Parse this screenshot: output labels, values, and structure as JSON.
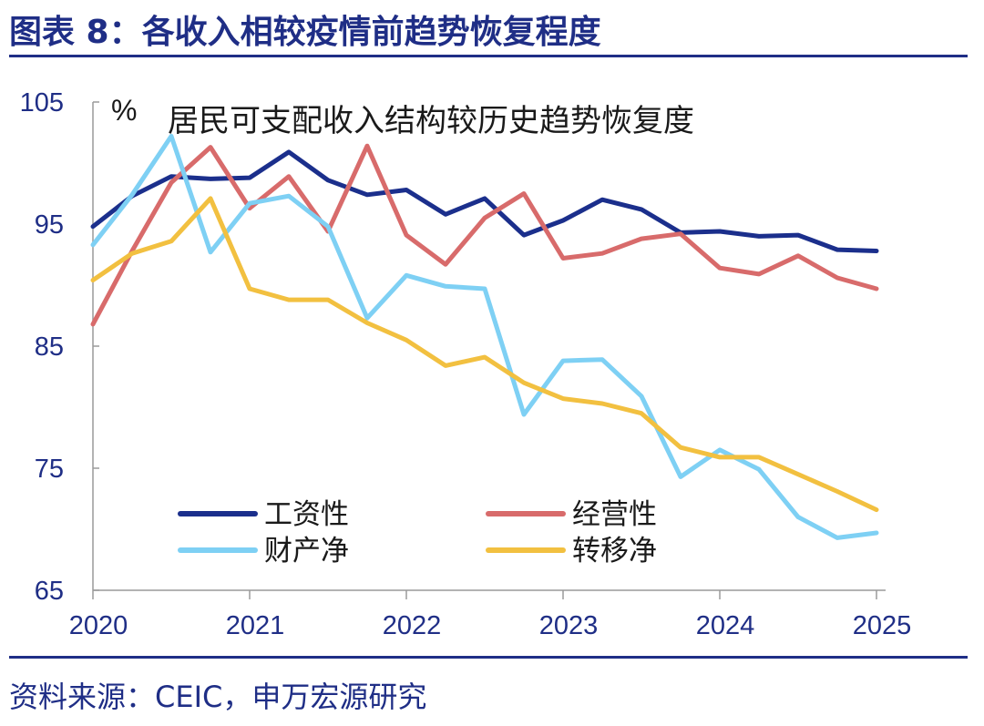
{
  "figure": {
    "title": "图表 8：各收入相较疫情前趋势恢复程度",
    "source": "资料来源：CEIC，申万宏源研究"
  },
  "chart_data": {
    "type": "line",
    "title": "居民可支配收入结构较历史趋势恢复度",
    "ylabel": "%",
    "xlabel": "",
    "ylim": [
      65,
      105
    ],
    "yticks": [
      65,
      75,
      85,
      95,
      105
    ],
    "xlim": [
      2020,
      2025.1
    ],
    "xticks": [
      "2020",
      "2021",
      "2022",
      "2023",
      "2024",
      "2025"
    ],
    "grid": false,
    "legend_position": "bottom-center",
    "x": [
      2020.0,
      2020.25,
      2020.5,
      2020.75,
      2021.0,
      2021.25,
      2021.5,
      2021.75,
      2022.0,
      2022.25,
      2022.5,
      2022.75,
      2023.0,
      2023.25,
      2023.5,
      2023.75,
      2024.0,
      2024.25,
      2024.5,
      2024.75,
      2025.0
    ],
    "series": [
      {
        "name": "工资性",
        "color": "#1b2f8c",
        "values": [
          94.8,
          97.3,
          98.9,
          98.7,
          98.8,
          100.9,
          98.6,
          97.4,
          97.8,
          95.8,
          97.1,
          94.1,
          95.3,
          97.0,
          96.2,
          94.3,
          94.4,
          94.0,
          94.1,
          92.9,
          92.8
        ]
      },
      {
        "name": "经营性",
        "color": "#d86b6b",
        "values": [
          86.8,
          92.8,
          98.4,
          101.3,
          96.3,
          98.9,
          94.4,
          101.4,
          94.1,
          91.7,
          95.5,
          97.5,
          92.2,
          92.6,
          93.8,
          94.2,
          91.4,
          90.9,
          92.4,
          90.6,
          89.7
        ]
      },
      {
        "name": "财产净",
        "color": "#7ed0f4",
        "values": [
          93.3,
          97.4,
          102.2,
          92.7,
          96.7,
          97.3,
          94.8,
          87.3,
          90.8,
          89.9,
          89.7,
          79.4,
          83.8,
          83.9,
          80.9,
          74.3,
          76.5,
          74.9,
          71.0,
          69.3,
          69.7
        ]
      },
      {
        "name": "转移净",
        "color": "#f2c040",
        "values": [
          90.4,
          92.6,
          93.6,
          97.1,
          89.7,
          88.8,
          88.8,
          86.9,
          85.5,
          83.4,
          84.1,
          82.0,
          80.7,
          80.3,
          79.5,
          76.7,
          75.9,
          75.9,
          74.5,
          73.1,
          71.6
        ]
      }
    ]
  }
}
